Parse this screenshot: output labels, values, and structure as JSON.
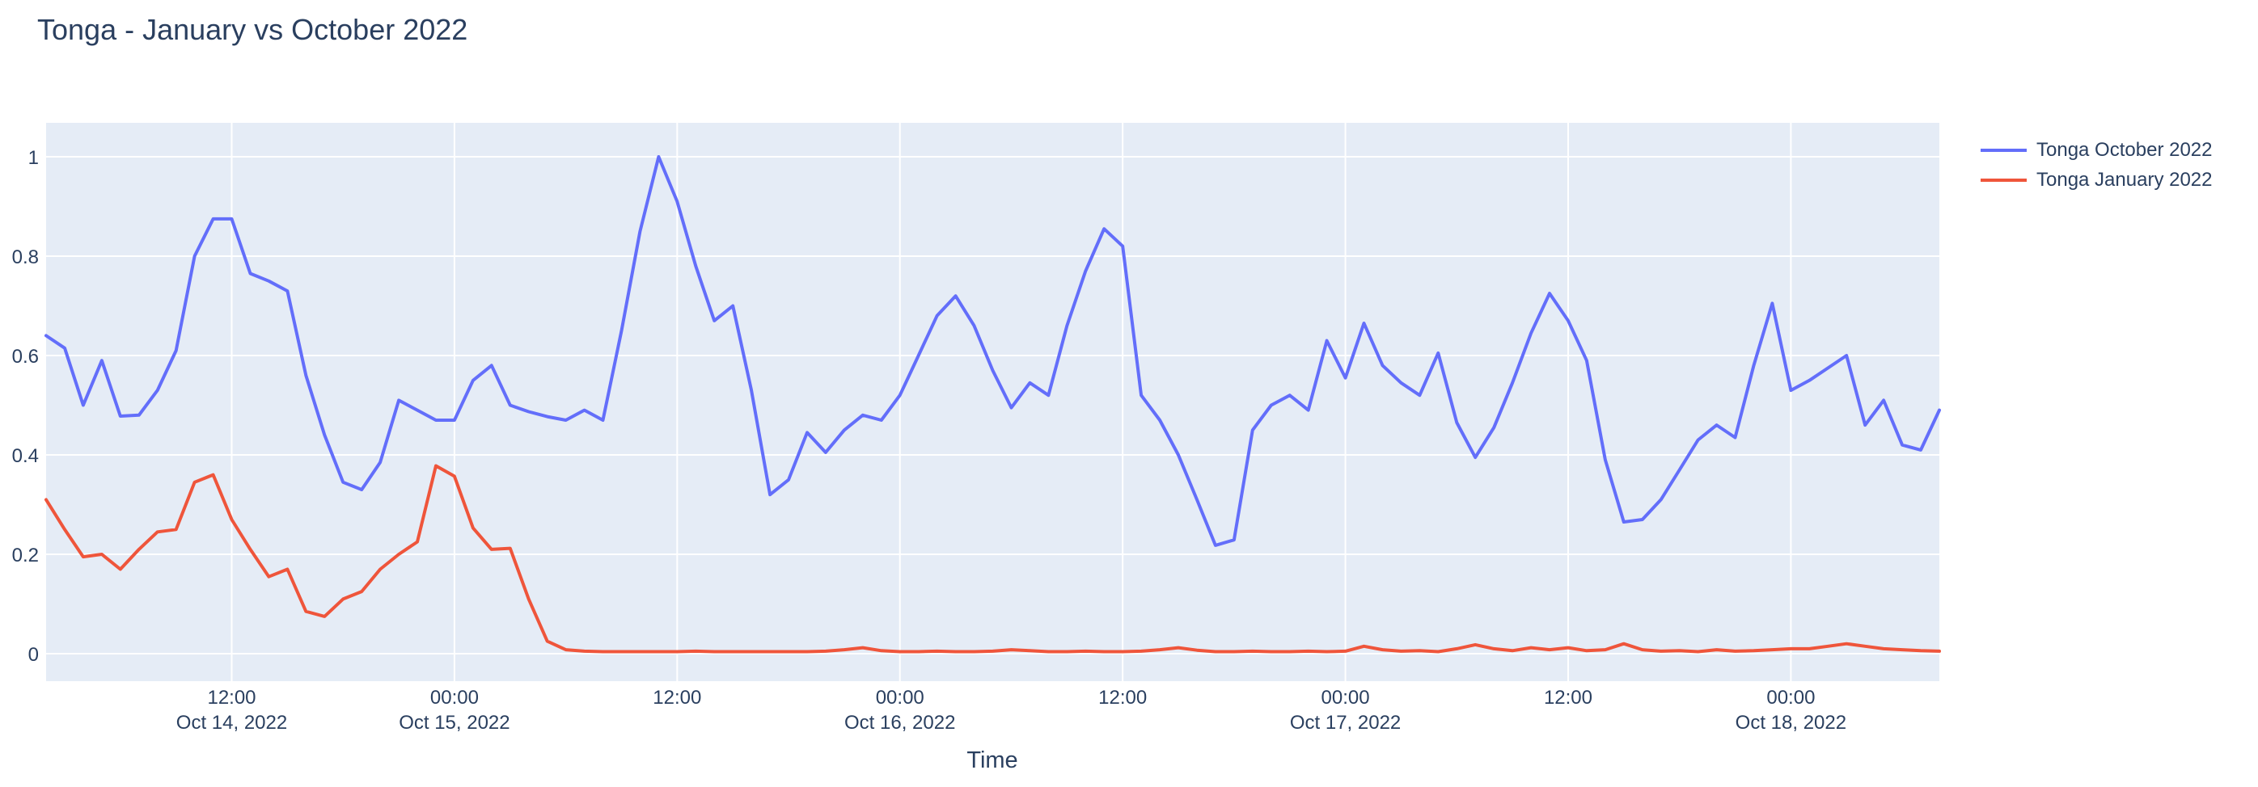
{
  "title": "Tonga - January vs October 2022",
  "colors": {
    "page_background": "#ffffff",
    "plot_background": "#e5ecf6",
    "gridline": "#ffffff",
    "font": "#2a3f5f",
    "series_october": "#636efa",
    "series_january": "#ef553b"
  },
  "legend": {
    "items": [
      {
        "label": "Tonga October 2022",
        "color": "#636efa"
      },
      {
        "label": "Tonga January 2022",
        "color": "#ef553b"
      }
    ]
  },
  "chart_data": {
    "type": "line",
    "title": "Tonga - January vs October 2022",
    "xlabel": "Time",
    "ylabel": "",
    "grid": true,
    "legend_position": "outside-top-right",
    "ylim": [
      -0.056,
      1.069
    ],
    "x_axis_note": "hourly samples; t = hours since 2022-10-14 00:00, from t=2 (Oct 14 02:00) to t=104 (Oct 18 08:00)",
    "x_start_hour": 2,
    "x_step_hours": 1,
    "x_ticks": [
      {
        "t": 12,
        "time": "12:00",
        "date": "Oct 14, 2022"
      },
      {
        "t": 24,
        "time": "00:00",
        "date": "Oct 15, 2022"
      },
      {
        "t": 36,
        "time": "12:00",
        "date": ""
      },
      {
        "t": 48,
        "time": "00:00",
        "date": "Oct 16, 2022"
      },
      {
        "t": 60,
        "time": "12:00",
        "date": ""
      },
      {
        "t": 72,
        "time": "00:00",
        "date": "Oct 17, 2022"
      },
      {
        "t": 84,
        "time": "12:00",
        "date": ""
      },
      {
        "t": 96,
        "time": "00:00",
        "date": "Oct 18, 2022"
      }
    ],
    "y_ticks": [
      {
        "v": 0,
        "label": "0"
      },
      {
        "v": 0.2,
        "label": "0.2"
      },
      {
        "v": 0.4,
        "label": "0.4"
      },
      {
        "v": 0.6,
        "label": "0.6"
      },
      {
        "v": 0.8,
        "label": "0.8"
      },
      {
        "v": 1,
        "label": "1"
      }
    ],
    "series": [
      {
        "name": "Tonga October 2022",
        "color": "#636efa",
        "values": [
          0.64,
          0.615,
          0.5,
          0.59,
          0.478,
          0.48,
          0.53,
          0.61,
          0.8,
          0.875,
          0.875,
          0.765,
          0.75,
          0.73,
          0.56,
          0.44,
          0.345,
          0.33,
          0.385,
          0.51,
          0.49,
          0.47,
          0.47,
          0.55,
          0.58,
          0.5,
          0.487,
          0.477,
          0.47,
          0.49,
          0.47,
          0.65,
          0.85,
          1.0,
          0.91,
          0.78,
          0.67,
          0.7,
          0.53,
          0.32,
          0.35,
          0.445,
          0.405,
          0.45,
          0.48,
          0.47,
          0.52,
          0.6,
          0.68,
          0.72,
          0.66,
          0.57,
          0.495,
          0.545,
          0.52,
          0.66,
          0.77,
          0.855,
          0.82,
          0.52,
          0.47,
          0.4,
          0.31,
          0.218,
          0.229,
          0.45,
          0.5,
          0.52,
          0.49,
          0.63,
          0.555,
          0.665,
          0.58,
          0.545,
          0.52,
          0.605,
          0.465,
          0.395,
          0.455,
          0.545,
          0.645,
          0.725,
          0.67,
          0.59,
          0.39,
          0.265,
          0.27,
          0.31,
          0.37,
          0.43,
          0.46,
          0.435,
          0.58,
          0.705,
          0.53,
          0.55,
          0.575,
          0.6,
          0.46,
          0.51,
          0.42,
          0.41,
          0.49
        ]
      },
      {
        "name": "Tonga January 2022",
        "color": "#ef553b",
        "values": [
          0.31,
          0.25,
          0.195,
          0.2,
          0.17,
          0.21,
          0.245,
          0.25,
          0.345,
          0.36,
          0.27,
          0.21,
          0.155,
          0.17,
          0.085,
          0.075,
          0.11,
          0.125,
          0.17,
          0.2,
          0.225,
          0.378,
          0.357,
          0.253,
          0.21,
          0.212,
          0.11,
          0.025,
          0.008,
          0.005,
          0.004,
          0.004,
          0.004,
          0.004,
          0.004,
          0.005,
          0.004,
          0.004,
          0.004,
          0.004,
          0.004,
          0.004,
          0.005,
          0.008,
          0.012,
          0.006,
          0.004,
          0.004,
          0.005,
          0.004,
          0.004,
          0.005,
          0.008,
          0.006,
          0.004,
          0.004,
          0.005,
          0.004,
          0.004,
          0.005,
          0.008,
          0.012,
          0.007,
          0.004,
          0.004,
          0.005,
          0.004,
          0.004,
          0.005,
          0.004,
          0.005,
          0.015,
          0.008,
          0.005,
          0.006,
          0.004,
          0.01,
          0.018,
          0.01,
          0.006,
          0.012,
          0.008,
          0.012,
          0.006,
          0.008,
          0.02,
          0.008,
          0.005,
          0.006,
          0.004,
          0.008,
          0.005,
          0.006,
          0.008,
          0.01,
          0.01,
          0.015,
          0.02,
          0.015,
          0.01,
          0.008,
          0.006,
          0.005
        ]
      }
    ]
  }
}
